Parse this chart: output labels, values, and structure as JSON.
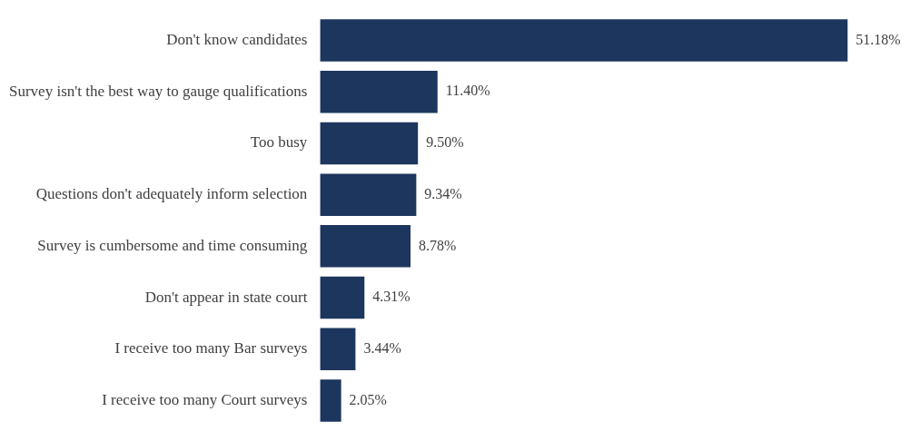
{
  "chart_data": {
    "type": "bar",
    "orientation": "horizontal",
    "categories": [
      "Don't know candidates",
      "Survey isn't the best way to gauge qualifications",
      "Too busy",
      "Questions don't adequately inform selection",
      "Survey is cumbersome and time consuming",
      "Don't appear in state court",
      "I receive too many Bar surveys",
      "I receive too many Court surveys"
    ],
    "values": [
      51.18,
      11.4,
      9.5,
      9.34,
      8.78,
      4.31,
      3.44,
      2.05
    ],
    "value_labels": [
      "51.18%",
      "11.40%",
      "9.50%",
      "9.34%",
      "8.78%",
      "4.31%",
      "3.44%",
      "2.05%"
    ],
    "color": "#1d365e"
  }
}
